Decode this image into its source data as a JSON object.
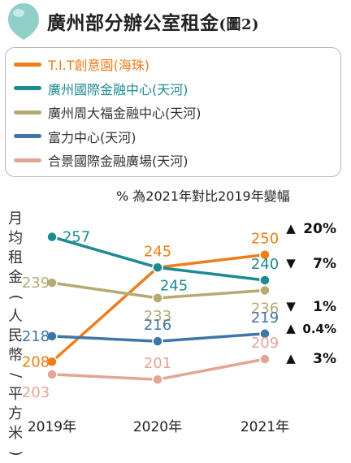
{
  "title": "廣州部分辦公室租金",
  "figure_tag": "(圖2)",
  "colors": {
    "title_icon": "#8fd0c8"
  },
  "chart_data": {
    "type": "line",
    "subtitle": "% 為2021年對比2019年變幅",
    "ylabel": "月均租金(人民幣/平方米)",
    "xlabel": "",
    "categories": [
      "2019年",
      "2020年",
      "2021年"
    ],
    "ylim": [
      195,
      262
    ],
    "grid": false,
    "legend_position": "top",
    "series": [
      {
        "name": "T.I.T創意園(海珠)",
        "color": "#ef7d1a",
        "values": [
          208,
          245,
          250
        ],
        "labels": [
          "208",
          "245",
          "250"
        ],
        "change_arrow": "▲",
        "change": "20%"
      },
      {
        "name": "廣州國際金融中心(天河)",
        "color": "#1d8a92",
        "values": [
          257,
          245,
          240
        ],
        "labels": [
          "257",
          "245",
          "240"
        ],
        "change_arrow": "▼",
        "change": "7%"
      },
      {
        "name": "廣州周大福金融中心(天河)",
        "color": "#b5ab72",
        "values": [
          239,
          233,
          236
        ],
        "labels": [
          "239",
          "233",
          "236"
        ],
        "change_arrow": "▼",
        "change": "1%"
      },
      {
        "name": "富力中心(天河)",
        "color": "#3f76a8",
        "values": [
          218,
          216,
          219
        ],
        "labels": [
          "218",
          "216",
          "219"
        ],
        "change_arrow": "▲",
        "change": "0.4%"
      },
      {
        "name": "合景國際金融廣場(天河)",
        "color": "#e3a596",
        "values": [
          203,
          201,
          209
        ],
        "labels": [
          "203",
          "201",
          "209"
        ],
        "change_arrow": "▲",
        "change": "3%"
      }
    ]
  }
}
